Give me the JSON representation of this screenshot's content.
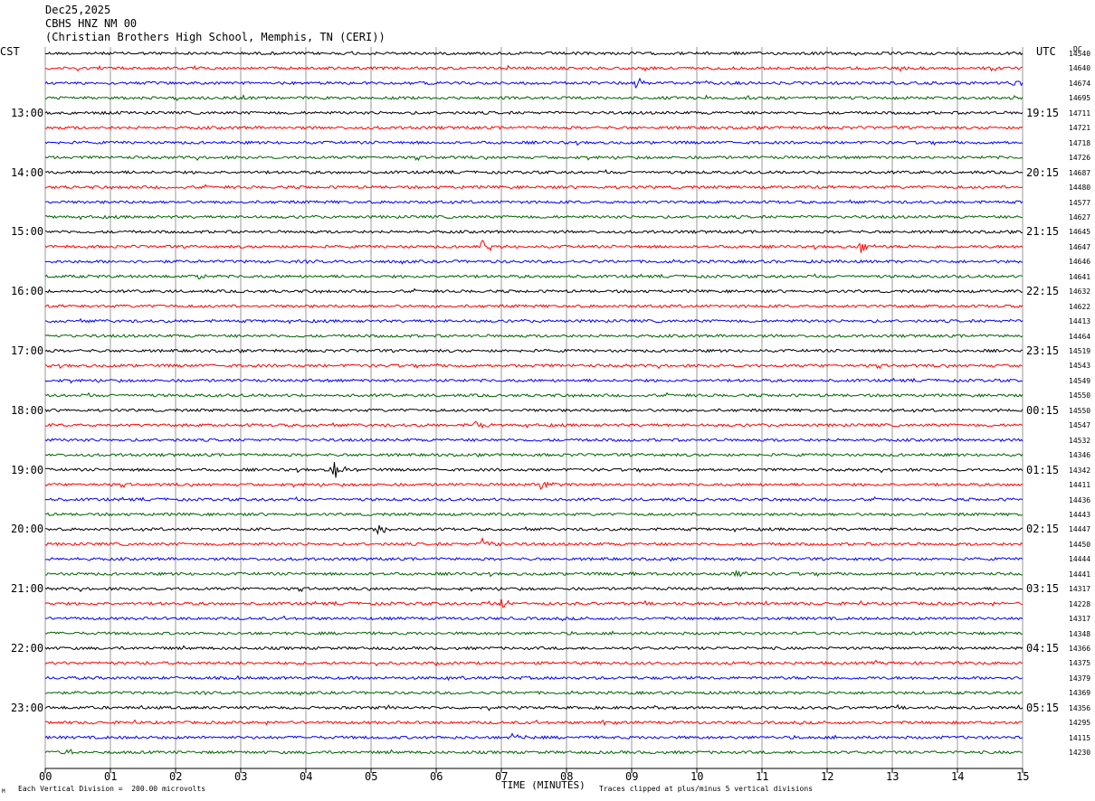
{
  "header": {
    "line1": "Dec25,2025",
    "line2": "CBHS HNZ NM 00",
    "line3": "(Christian Brothers High School, Memphis, TN (CERI))"
  },
  "left_tz": "CST",
  "right_tz": "UTC",
  "dc_label": "DC",
  "footer": {
    "scale_note": "Each Vertical Division =  200.00 microvolts",
    "clip_note": "Traces clipped at plus/minus 5 vertical divisions",
    "corner_mark": "M"
  },
  "colors": {
    "trace_cycle": [
      "#000000",
      "#ff0000",
      "#0000ff",
      "#006400"
    ],
    "grid": "#808080"
  },
  "chart_data": {
    "type": "line",
    "subtype": "helicorder",
    "xlabel": "TIME (MINUTES)",
    "xlim": [
      0,
      15
    ],
    "x_ticks": [
      "00",
      "01",
      "02",
      "03",
      "04",
      "05",
      "06",
      "07",
      "08",
      "09",
      "10",
      "11",
      "12",
      "13",
      "14",
      "15"
    ],
    "grid": true,
    "left_hour_labels": [
      "13:00",
      "14:00",
      "15:00",
      "16:00",
      "17:00",
      "18:00",
      "19:00",
      "20:00",
      "21:00",
      "22:00",
      "23:00"
    ],
    "right_hour_labels": [
      "19:15",
      "20:15",
      "21:15",
      "22:15",
      "23:15",
      "00:15",
      "01:15",
      "02:15",
      "03:15",
      "04:15",
      "05:15"
    ],
    "dc_offsets": [
      14540,
      14640,
      14674,
      14695,
      14711,
      14721,
      14718,
      14726,
      14687,
      14480,
      14577,
      14627,
      14645,
      14647,
      14646,
      14641,
      14632,
      14622,
      14413,
      14464,
      14519,
      14543,
      14549,
      14550,
      14550,
      14547,
      14532,
      14346,
      14342,
      14411,
      14436,
      14443,
      14447,
      14450,
      14444,
      14441,
      14317,
      14228,
      14317,
      14348,
      14366,
      14375,
      14379,
      14369,
      14356,
      14295,
      14115,
      14230
    ],
    "events": [
      {
        "trace": 2,
        "minute": 9.05,
        "amp": 7
      },
      {
        "trace": 2,
        "minute": 14.8,
        "amp": 6
      },
      {
        "trace": 13,
        "minute": 6.7,
        "amp": 9
      },
      {
        "trace": 13,
        "minute": 12.5,
        "amp": 8
      },
      {
        "trace": 15,
        "minute": 2.25,
        "amp": 5
      },
      {
        "trace": 25,
        "minute": 6.6,
        "amp": 5
      },
      {
        "trace": 28,
        "minute": 4.4,
        "amp": 14
      },
      {
        "trace": 29,
        "minute": 7.6,
        "amp": 8
      },
      {
        "trace": 32,
        "minute": 5.05,
        "amp": 8
      },
      {
        "trace": 33,
        "minute": 6.7,
        "amp": 6
      },
      {
        "trace": 35,
        "minute": 10.55,
        "amp": 7
      },
      {
        "trace": 35,
        "minute": 8.85,
        "amp": 4
      },
      {
        "trace": 37,
        "minute": 7.0,
        "amp": 7
      },
      {
        "trace": 45,
        "minute": 8.55,
        "amp": 5
      },
      {
        "trace": 46,
        "minute": 7.15,
        "amp": 6
      },
      {
        "trace": 47,
        "minute": 0.3,
        "amp": 8
      }
    ]
  }
}
